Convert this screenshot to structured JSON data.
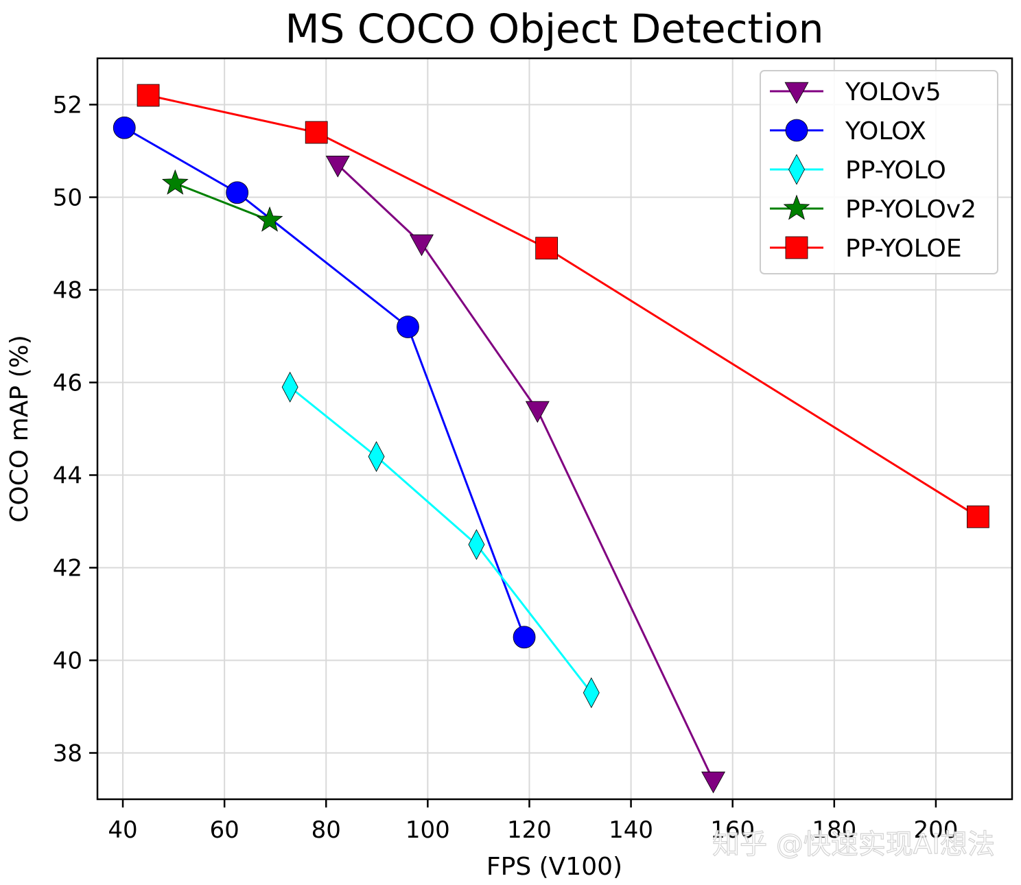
{
  "chart_data": {
    "type": "line",
    "title": "MS COCO Object Detection",
    "xlabel": "FPS (V100)",
    "ylabel": "COCO mAP (%)",
    "xlim": [
      35,
      215
    ],
    "ylim": [
      37,
      53
    ],
    "xticks": [
      40,
      60,
      80,
      100,
      120,
      140,
      160,
      180,
      200
    ],
    "yticks": [
      38,
      40,
      42,
      44,
      46,
      48,
      50,
      52
    ],
    "grid": true,
    "legend_position": "top-right",
    "series": [
      {
        "name": "YOLOv5",
        "color": "#800080",
        "marker": "triangle-down",
        "points": [
          [
            82.3,
            50.7
          ],
          [
            98.8,
            49.0
          ],
          [
            121.6,
            45.4
          ],
          [
            156.2,
            37.4
          ]
        ]
      },
      {
        "name": "YOLOX",
        "color": "#0000ff",
        "marker": "circle",
        "points": [
          [
            40.3,
            51.5
          ],
          [
            62.5,
            50.1
          ],
          [
            96.1,
            47.2
          ],
          [
            119.0,
            40.5
          ]
        ]
      },
      {
        "name": "PP-YOLO",
        "color": "#00ffff",
        "marker": "diamond",
        "points": [
          [
            72.9,
            45.9
          ],
          [
            89.9,
            44.4
          ],
          [
            109.6,
            42.5
          ],
          [
            132.2,
            39.3
          ]
        ]
      },
      {
        "name": "PP-YOLOv2",
        "color": "#008000",
        "marker": "star",
        "points": [
          [
            50.3,
            50.3
          ],
          [
            68.9,
            49.5
          ]
        ]
      },
      {
        "name": "PP-YOLOE",
        "color": "#ff0000",
        "marker": "square",
        "points": [
          [
            45.0,
            52.2
          ],
          [
            78.1,
            51.4
          ],
          [
            123.4,
            48.9
          ],
          [
            208.3,
            43.1
          ]
        ]
      }
    ]
  },
  "watermark": "知乎 @快速实现AI想法"
}
